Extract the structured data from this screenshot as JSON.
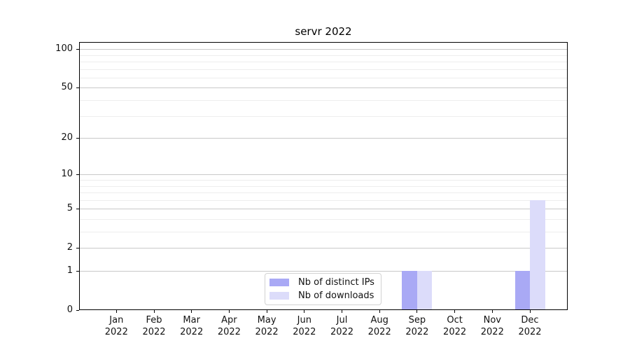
{
  "chart_data": {
    "type": "bar",
    "title": "servr 2022",
    "categories": [
      "Jan 2022",
      "Feb 2022",
      "Mar 2022",
      "Apr 2022",
      "May 2022",
      "Jun 2022",
      "Jul 2022",
      "Aug 2022",
      "Sep 2022",
      "Oct 2022",
      "Nov 2022",
      "Dec 2022"
    ],
    "series": [
      {
        "name": "Nb of distinct IPs",
        "color": "#a9a9f5",
        "values": [
          0,
          0,
          0,
          0,
          0,
          0,
          0,
          0,
          1,
          0,
          0,
          1
        ]
      },
      {
        "name": "Nb of downloads",
        "color": "#dcdcfa",
        "values": [
          0,
          0,
          0,
          0,
          0,
          0,
          0,
          0,
          1,
          0,
          0,
          6
        ]
      }
    ],
    "xlabel": "",
    "ylabel": "",
    "yscale": "log1p",
    "yticks": [
      0,
      1,
      2,
      5,
      10,
      20,
      50,
      100
    ],
    "yticks_minor": [
      3,
      4,
      6,
      7,
      8,
      9,
      30,
      40,
      60,
      70,
      80,
      90
    ],
    "ylim": [
      0,
      115
    ],
    "grid": "horizontal",
    "legend_position": "inside-bottom-center"
  }
}
